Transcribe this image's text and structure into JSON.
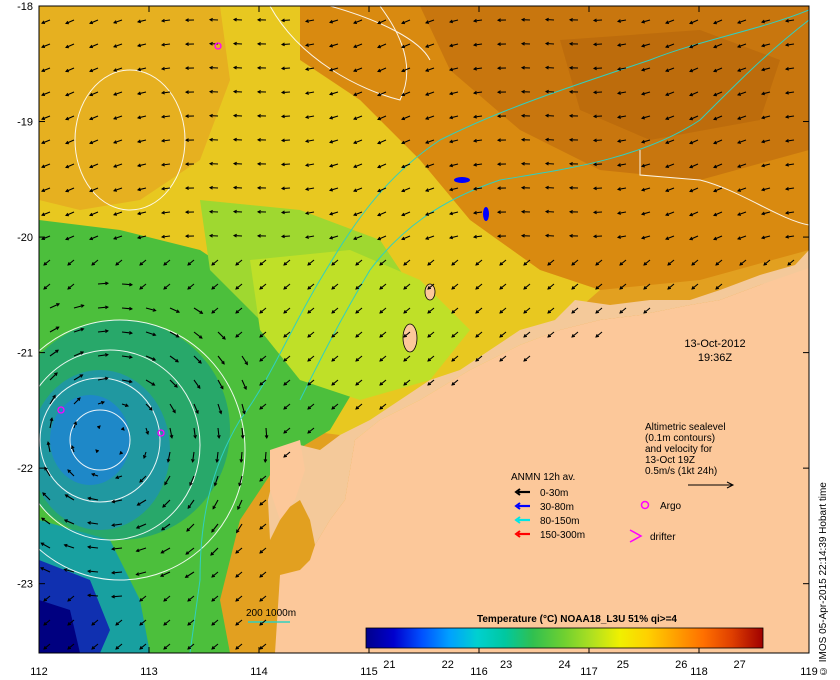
{
  "map": {
    "lon_ticks": [
      "112",
      "113",
      "114",
      "115",
      "116",
      "117",
      "118",
      "119"
    ],
    "lat_ticks": [
      "-18",
      "-19",
      "-20",
      "-21",
      "-22",
      "-23"
    ],
    "lon_range": [
      112,
      119
    ],
    "lat_range": [
      -23.6,
      -18
    ]
  },
  "timestamp": {
    "date": "13-Oct-2012",
    "time": "19:36Z"
  },
  "altimetry_note": {
    "line1": "Altimetric sealevel",
    "line2": "(0.1m contours)",
    "line3": "and velocity for",
    "line4": "13-Oct 19Z",
    "line5": "0.5m/s (1kt 24h)"
  },
  "anmn_legend": {
    "title": "ANMN 12h av.",
    "items": [
      {
        "label": "0-30m",
        "color": "#000000"
      },
      {
        "label": "30-80m",
        "color": "#0000ff"
      },
      {
        "label": "80-150m",
        "color": "#00e5e5"
      },
      {
        "label": "150-300m",
        "color": "#ff0000"
      }
    ]
  },
  "symbols": {
    "argo_label": "Argo",
    "argo_color": "#ff00ff",
    "drifter_label": "drifter",
    "drifter_color": "#ff00ff"
  },
  "isobath_label": "200  1000m",
  "colorbar": {
    "title": "Temperature (°C) NOAA18_L3U 51% qi>=4",
    "tick_labels": [
      "21",
      "22",
      "23",
      "24",
      "25",
      "26",
      "27"
    ],
    "ticks": [
      21,
      22,
      23,
      24,
      25,
      26,
      27
    ],
    "range": [
      20.6,
      27.4
    ],
    "colors": [
      "#00008b",
      "#0000cd",
      "#0050ff",
      "#00a0ff",
      "#00d0d0",
      "#00c8a0",
      "#30c050",
      "#70d030",
      "#b0e020",
      "#f0f000",
      "#ffd000",
      "#ffa000",
      "#ff7000",
      "#e04000",
      "#a00000"
    ]
  },
  "credit": "© IMOS 05-Apr-2015 22:14:39 Hobart time"
}
